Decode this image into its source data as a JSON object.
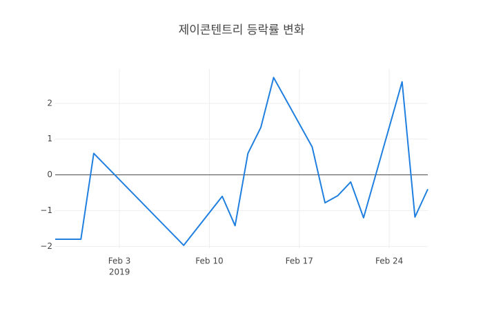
{
  "chart_data": {
    "type": "line",
    "title": "제이콘텐트리 등락률 변화",
    "x": [
      "2019-01-29",
      "2019-01-31",
      "2019-02-01",
      "2019-02-08",
      "2019-02-11",
      "2019-02-12",
      "2019-02-13",
      "2019-02-14",
      "2019-02-15",
      "2019-02-18",
      "2019-02-19",
      "2019-02-20",
      "2019-02-21",
      "2019-02-22",
      "2019-02-25",
      "2019-02-26",
      "2019-02-27"
    ],
    "series": [
      {
        "color": "#1f7fe0",
        "values": [
          -1.8,
          -1.8,
          0.6,
          -1.97,
          -0.6,
          -1.42,
          0.6,
          1.32,
          2.72,
          0.78,
          -0.78,
          -0.58,
          -0.2,
          -1.2,
          2.6,
          -1.18,
          -0.4
        ]
      }
    ],
    "xlim": [
      "2019-01-29",
      "2019-02-27"
    ],
    "xticks": [
      {
        "value": "2019-02-03",
        "label": "Feb 3",
        "sublabel": "2019"
      },
      {
        "value": "2019-02-10",
        "label": "Feb 10"
      },
      {
        "value": "2019-02-17",
        "label": "Feb 17"
      },
      {
        "value": "2019-02-24",
        "label": "Feb 24"
      }
    ],
    "ylim": [
      -2.05,
      2.96
    ],
    "yticks": [
      {
        "value": -2,
        "label": "−2"
      },
      {
        "value": -1,
        "label": "−1"
      },
      0,
      1,
      2
    ],
    "grid": true
  }
}
